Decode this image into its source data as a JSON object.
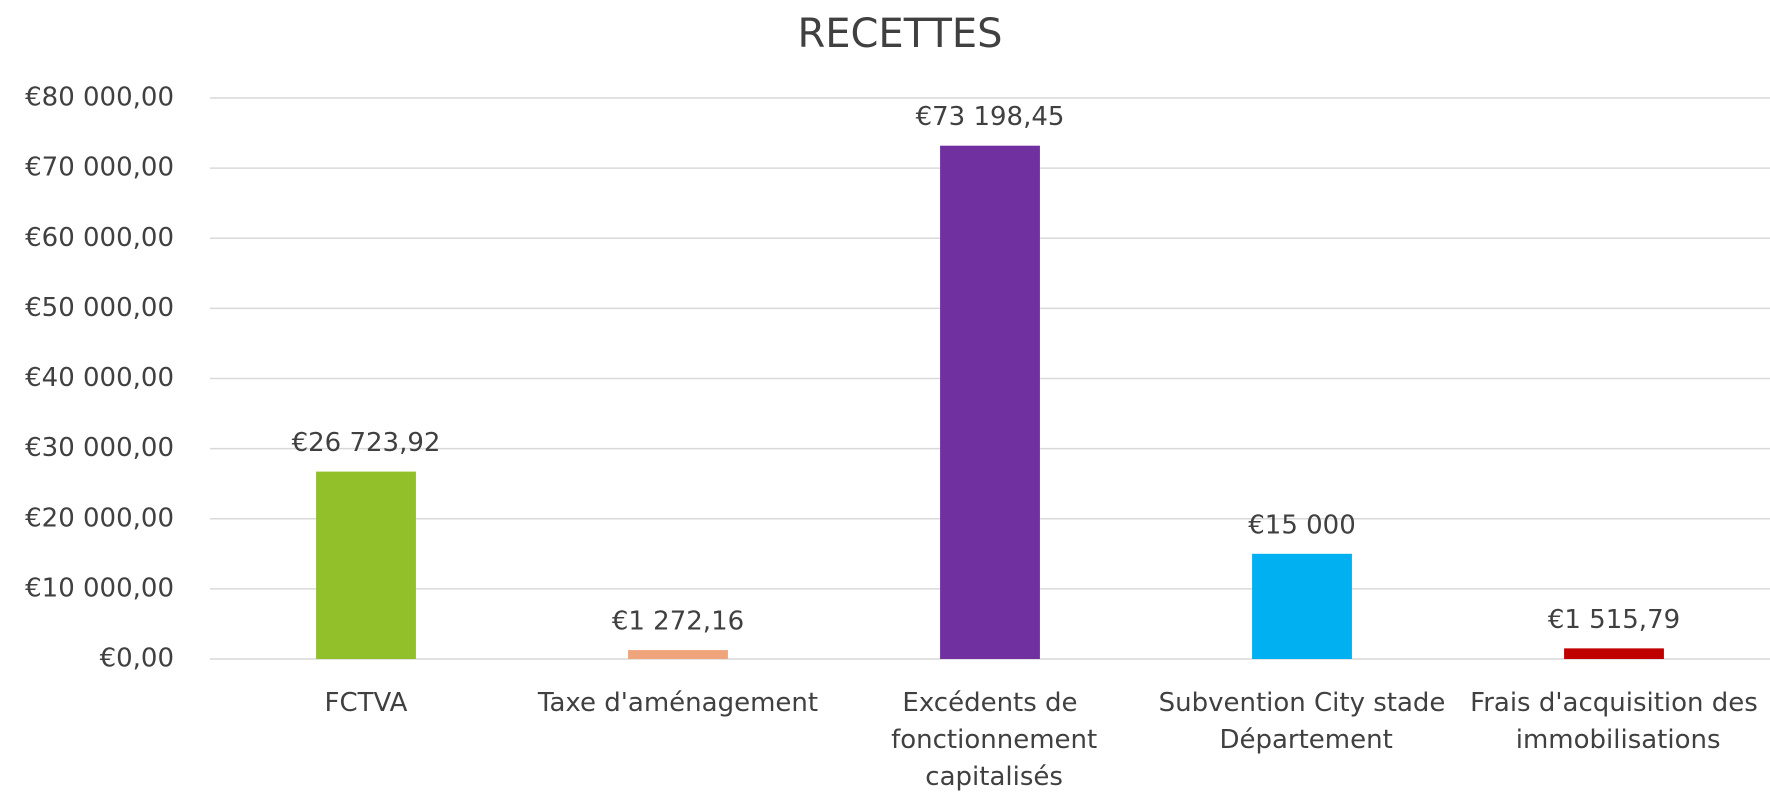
{
  "chart_data": {
    "type": "bar",
    "title": "RECETTES",
    "categories": [
      "FCTVA",
      "Taxe d'aménagement",
      "Excédents de fonctionnement capitalisés",
      "Subvention City stade Département",
      "Frais d'acquisition des immobilisations"
    ],
    "values": [
      26723.92,
      1272.16,
      73198.45,
      15000,
      1515.79
    ],
    "value_labels": [
      "€26 723,92",
      "€1 272,16",
      "€73 198,45",
      "€15 000",
      "€1 515,79"
    ],
    "colors": [
      "#92c02a",
      "#f0a47c",
      "#7030a0",
      "#00b0f0",
      "#c00000"
    ],
    "ylim": [
      0,
      80000
    ],
    "yticks": [
      {
        "value": 0,
        "label": "€0,00"
      },
      {
        "value": 10000,
        "label": "€10 000,00"
      },
      {
        "value": 20000,
        "label": "€20 000,00"
      },
      {
        "value": 30000,
        "label": "€30 000,00"
      },
      {
        "value": 40000,
        "label": "€40 000,00"
      },
      {
        "value": 50000,
        "label": "€50 000,00"
      },
      {
        "value": 60000,
        "label": "€60 000,00"
      },
      {
        "value": 70000,
        "label": "€70 000,00"
      },
      {
        "value": 80000,
        "label": "€80 000,00"
      }
    ],
    "grid": true
  }
}
